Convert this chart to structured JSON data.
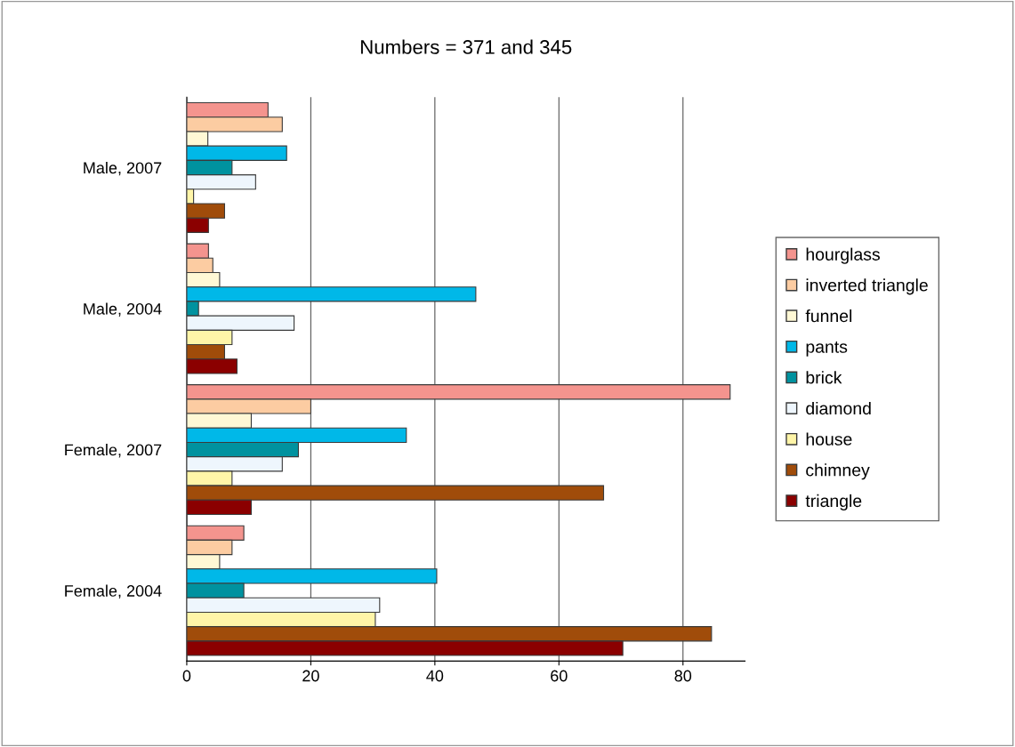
{
  "chart_data": {
    "type": "bar",
    "orientation": "horizontal",
    "title": "Numbers = 371 and 345",
    "categories": [
      "Male, 2007",
      "Male, 2004",
      "Female, 2007",
      "Female, 2004"
    ],
    "series": [
      {
        "name": "hourglass",
        "color": "#f4948e",
        "values": [
          13.1,
          3.5,
          87.6,
          9.2
        ]
      },
      {
        "name": "inverted triangle",
        "color": "#fccca2",
        "values": [
          15.4,
          4.2,
          20.0,
          7.3
        ]
      },
      {
        "name": "funnel",
        "color": "#fff8d5",
        "values": [
          3.4,
          5.3,
          10.4,
          5.3
        ]
      },
      {
        "name": "pants",
        "color": "#00b8e8",
        "values": [
          16.1,
          46.6,
          35.4,
          40.3
        ]
      },
      {
        "name": "brick",
        "color": "#00929f",
        "values": [
          7.3,
          1.9,
          18.0,
          9.2
        ]
      },
      {
        "name": "diamond",
        "color": "#eef6fd",
        "values": [
          11.1,
          17.3,
          15.4,
          31.1
        ]
      },
      {
        "name": "house",
        "color": "#fff5a8",
        "values": [
          1.1,
          7.3,
          7.3,
          30.4
        ]
      },
      {
        "name": "chimney",
        "color": "#a04c0a",
        "values": [
          6.1,
          6.1,
          67.2,
          84.6
        ]
      },
      {
        "name": "triangle",
        "color": "#8b0000",
        "values": [
          3.5,
          8.1,
          10.4,
          70.3
        ]
      }
    ],
    "xlim": [
      0,
      90
    ],
    "xticks": [
      0,
      20,
      40,
      60,
      80
    ],
    "grid": "x",
    "legend": "right"
  }
}
